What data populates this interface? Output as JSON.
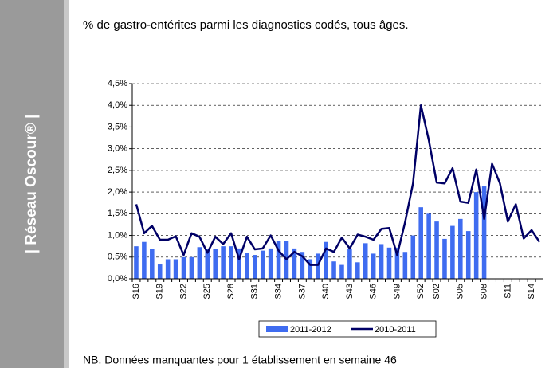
{
  "sidebar": "| Réseau Oscour® |",
  "note": "NB. Données manquantes pour 1 établissement en semaine 46",
  "chart_data": {
    "type": "bar_line",
    "title": "% de gastro-entérites parmi les diagnostics codés, tous âges.",
    "categories": [
      "S16",
      null,
      null,
      "S19",
      null,
      null,
      "S22",
      null,
      null,
      "S25",
      null,
      null,
      "S28",
      null,
      null,
      "S31",
      null,
      null,
      "S34",
      null,
      null,
      "S37",
      null,
      null,
      "S40",
      null,
      null,
      "S43",
      null,
      null,
      "S46",
      null,
      null,
      "S49",
      null,
      null,
      "S52",
      null,
      "S02",
      null,
      null,
      "S05",
      null,
      null,
      "S08",
      null,
      null,
      "S11",
      null,
      null,
      "S14",
      null
    ],
    "series": [
      {
        "name": "2011-2012",
        "type": "bar",
        "color": "#3f6cf0",
        "values": [
          0.75,
          0.85,
          0.68,
          0.33,
          0.45,
          0.45,
          0.5,
          0.5,
          0.73,
          0.68,
          0.68,
          0.75,
          0.75,
          0.7,
          0.6,
          0.55,
          0.65,
          0.7,
          0.88,
          0.88,
          0.7,
          0.62,
          0.45,
          0.58,
          0.85,
          0.4,
          0.32,
          0.7,
          0.38,
          0.82,
          0.58,
          0.8,
          0.72,
          0.72,
          0.62,
          1.0,
          1.65,
          1.5,
          1.32,
          0.92,
          1.22,
          1.38,
          1.1,
          2.0,
          2.13,
          null,
          null,
          null,
          null,
          null,
          null,
          null
        ]
      },
      {
        "name": "2010-2011",
        "type": "line",
        "color": "#000066",
        "values": [
          1.72,
          1.05,
          1.22,
          0.9,
          0.9,
          0.98,
          0.55,
          1.05,
          0.97,
          0.6,
          0.97,
          0.8,
          1.05,
          0.45,
          0.97,
          0.68,
          0.7,
          1.0,
          0.65,
          0.45,
          0.62,
          0.52,
          0.32,
          0.32,
          0.7,
          0.62,
          0.95,
          0.7,
          1.02,
          0.97,
          0.9,
          1.15,
          1.17,
          0.55,
          1.3,
          2.2,
          4.0,
          3.2,
          2.22,
          2.2,
          2.55,
          1.78,
          1.75,
          2.52,
          1.38,
          2.65,
          2.2,
          1.32,
          1.72,
          0.93,
          1.12,
          0.85
        ]
      }
    ],
    "ylim": [
      0,
      4.5
    ],
    "yticks": [
      {
        "value": 0,
        "label": "0,0%"
      },
      {
        "value": 0.5,
        "label": "0,5%"
      },
      {
        "value": 1,
        "label": "1,0%"
      },
      {
        "value": 1.5,
        "label": "1,5%"
      },
      {
        "value": 2,
        "label": "2,0%"
      },
      {
        "value": 2.5,
        "label": "2,5%"
      },
      {
        "value": 3,
        "label": "3,0%"
      },
      {
        "value": 3.5,
        "label": "3,5%"
      },
      {
        "value": 4,
        "label": "4,0%"
      },
      {
        "value": 4.5,
        "label": "4,5%"
      }
    ],
    "grid": true
  }
}
